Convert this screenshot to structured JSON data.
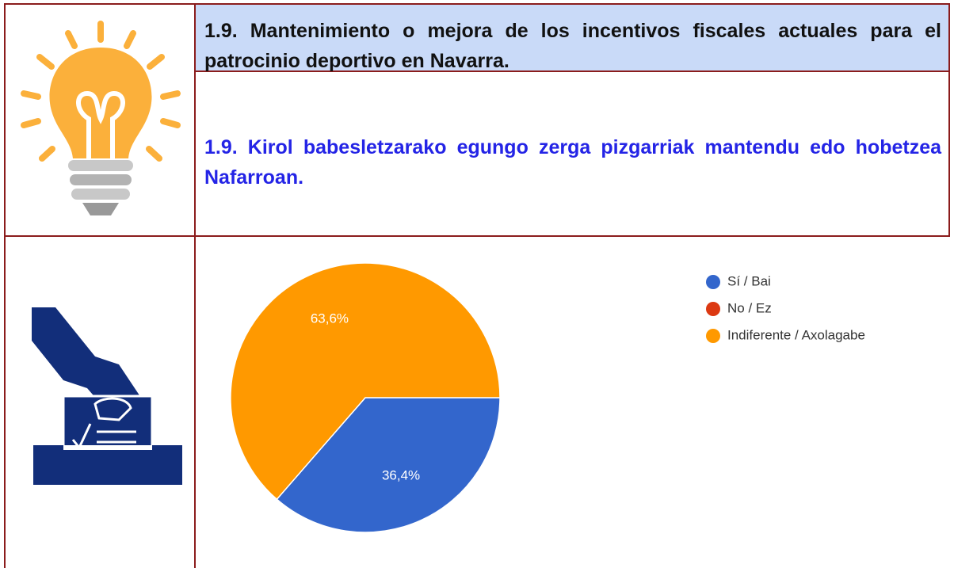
{
  "header": {
    "title_es": "1.9. Mantenimiento o mejora de los incentivos fiscales actuales para el patrocinio deportivo en Navarra.",
    "title_eu": "1.9. Kirol babesletzarako egungo zerga pizgarriak mantendu edo hobetzea Nafarroan."
  },
  "chart_data": {
    "type": "pie",
    "categories": [
      "Sí / Bai",
      "No / Ez",
      "Indiferente / Axolagabe"
    ],
    "values": [
      36.4,
      0,
      63.6
    ],
    "value_labels": [
      "36,4%",
      null,
      "63,6%"
    ],
    "colors": [
      "#3366cc",
      "#dc3912",
      "#ff9900"
    ],
    "legend": "right"
  }
}
